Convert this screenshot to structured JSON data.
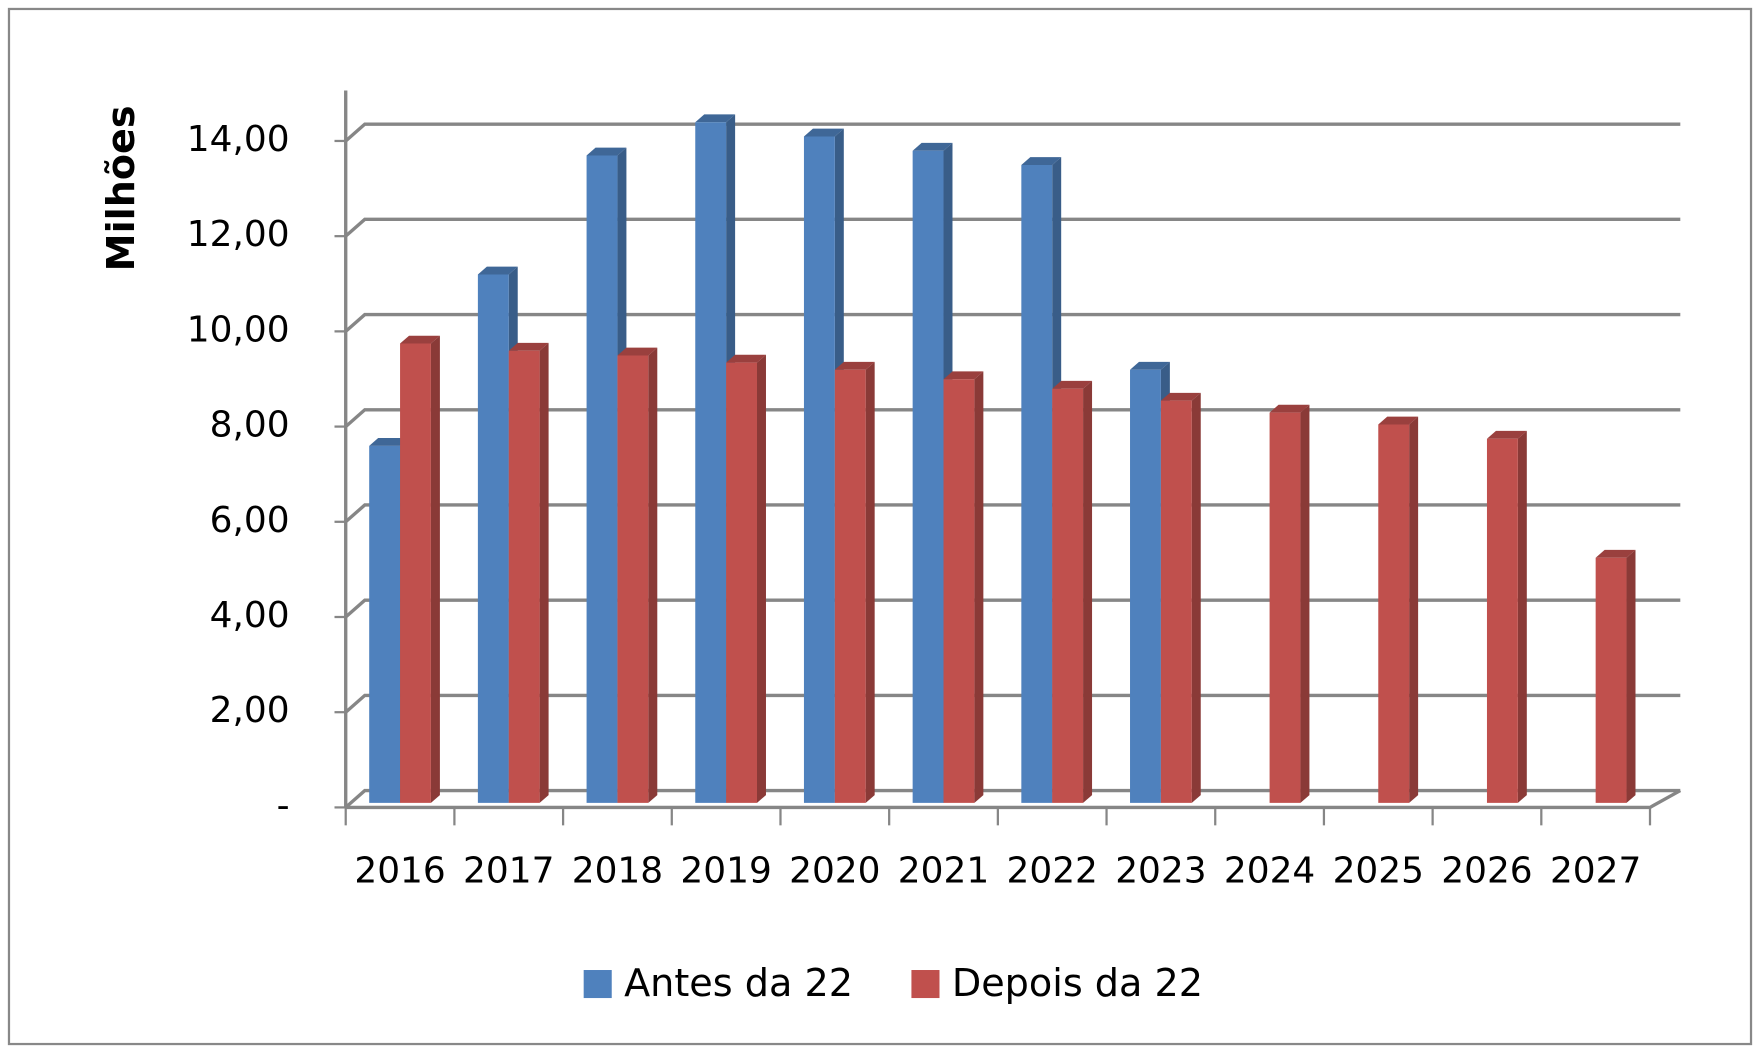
{
  "chart_data": {
    "type": "bar3d",
    "y_label": "Milhões",
    "categories": [
      "2016",
      "2017",
      "2018",
      "2019",
      "2020",
      "2021",
      "2022",
      "2023",
      "2024",
      "2025",
      "2026",
      "2027"
    ],
    "series": [
      {
        "name": "Antes da 22",
        "color": "#4f81bd",
        "values": [
          7.5,
          11.1,
          13.6,
          14.3,
          14.0,
          13.7,
          13.4,
          9.1,
          null,
          null,
          null,
          null
        ]
      },
      {
        "name": "Depois da 22",
        "color": "#c0504d",
        "values": [
          9.65,
          9.5,
          9.4,
          9.25,
          9.1,
          8.9,
          8.7,
          8.45,
          8.2,
          7.95,
          7.65,
          5.15
        ]
      }
    ],
    "ylim": [
      0,
      14
    ],
    "yticks": [
      {
        "value": 0,
        "label": "-"
      },
      {
        "value": 2,
        "label": "2,00"
      },
      {
        "value": 4,
        "label": "4,00"
      },
      {
        "value": 6,
        "label": "6,00"
      },
      {
        "value": 8,
        "label": "8,00"
      },
      {
        "value": 10,
        "label": "10,00"
      },
      {
        "value": 12,
        "label": "12,00"
      },
      {
        "value": 14,
        "label": "14,00"
      }
    ],
    "grid": true,
    "legend": "bottom"
  }
}
